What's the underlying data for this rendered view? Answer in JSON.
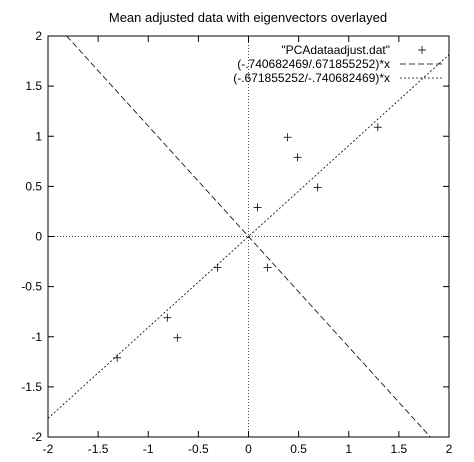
{
  "chart_data": {
    "type": "scatter",
    "title": "Mean adjusted data with eigenvectors overlayed",
    "xlim": [
      -2,
      2
    ],
    "ylim": [
      -2,
      2
    ],
    "x_ticks": [
      -2,
      -1.5,
      -1,
      -0.5,
      0,
      0.5,
      1,
      1.5,
      2
    ],
    "y_ticks": [
      -2,
      -1.5,
      -1,
      -0.5,
      0,
      0.5,
      1,
      1.5,
      2
    ],
    "x_tick_labels": [
      "-2",
      "-1.5",
      "-1",
      "-0.5",
      "0",
      "0.5",
      "1",
      "1.5",
      "2"
    ],
    "y_tick_labels": [
      "-2",
      "-1.5",
      "-1",
      "-0.5",
      "0",
      "0.5",
      "1",
      "1.5",
      "2"
    ],
    "grid": false,
    "zero_axes": true,
    "legend_position": "top-right",
    "series": [
      {
        "name": "\"PCAdataadjust.dat\"",
        "kind": "points",
        "marker": "+",
        "points": [
          {
            "x": 0.69,
            "y": 0.49
          },
          {
            "x": -1.31,
            "y": -1.21
          },
          {
            "x": 0.39,
            "y": 0.99
          },
          {
            "x": 0.09,
            "y": 0.29
          },
          {
            "x": 1.29,
            "y": 1.09
          },
          {
            "x": 0.49,
            "y": 0.79
          },
          {
            "x": 0.19,
            "y": -0.31
          },
          {
            "x": -0.81,
            "y": -0.81
          },
          {
            "x": -0.31,
            "y": -0.31
          },
          {
            "x": -0.71,
            "y": -1.01
          }
        ]
      },
      {
        "name": "(-.740682469/.671855252)*x",
        "kind": "line",
        "slope": -1.1024,
        "dash": "long"
      },
      {
        "name": "(-.671855252/-.740682469)*x",
        "kind": "line",
        "slope": 0.9071,
        "dash": "dotted"
      }
    ]
  }
}
